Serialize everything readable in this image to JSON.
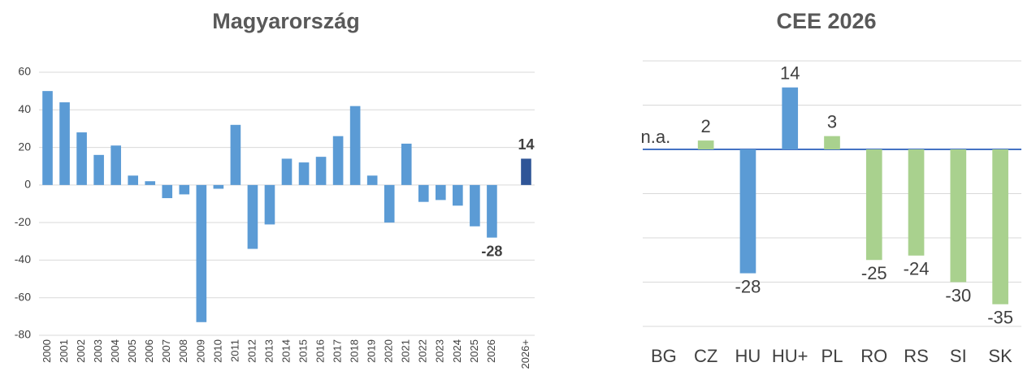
{
  "chart_data": [
    {
      "type": "bar",
      "title": "Magyarország",
      "categories": [
        "2000",
        "2001",
        "2002",
        "2003",
        "2004",
        "2005",
        "2006",
        "2007",
        "2008",
        "2009",
        "2010",
        "2011",
        "2012",
        "2013",
        "2014",
        "2015",
        "2016",
        "2017",
        "2018",
        "2019",
        "2020",
        "2021",
        "2022",
        "2023",
        "2024",
        "2025",
        "2026",
        null,
        "2026+"
      ],
      "values": [
        50,
        44,
        28,
        16,
        21,
        5,
        2,
        -7,
        -5,
        -73,
        -2,
        32,
        -34,
        -21,
        14,
        12,
        15,
        26,
        42,
        5,
        -20,
        22,
        -9,
        -8,
        -11,
        -22,
        -28,
        null,
        14
      ],
      "value_labels": [
        null,
        null,
        null,
        null,
        null,
        null,
        null,
        null,
        null,
        null,
        null,
        null,
        null,
        null,
        null,
        null,
        null,
        null,
        null,
        null,
        null,
        null,
        null,
        null,
        null,
        null,
        "-28",
        null,
        "14"
      ],
      "colors": [
        "#5b9bd5",
        "#5b9bd5",
        "#5b9bd5",
        "#5b9bd5",
        "#5b9bd5",
        "#5b9bd5",
        "#5b9bd5",
        "#5b9bd5",
        "#5b9bd5",
        "#5b9bd5",
        "#5b9bd5",
        "#5b9bd5",
        "#5b9bd5",
        "#5b9bd5",
        "#5b9bd5",
        "#5b9bd5",
        "#5b9bd5",
        "#5b9bd5",
        "#5b9bd5",
        "#5b9bd5",
        "#5b9bd5",
        "#5b9bd5",
        "#5b9bd5",
        "#5b9bd5",
        "#5b9bd5",
        "#5b9bd5",
        "#5b9bd5",
        null,
        "#2f5597"
      ],
      "ylim": [
        -80,
        60
      ],
      "yticks": [
        -80,
        -60,
        -40,
        -20,
        0,
        20,
        40,
        60
      ],
      "grid": true,
      "show_tick_labels": true
    },
    {
      "type": "bar",
      "title": "CEE 2026",
      "categories": [
        "BG",
        "CZ",
        "HU",
        "HU+",
        "PL",
        "RO",
        "RS",
        "SI",
        "SK"
      ],
      "values": [
        null,
        2,
        -28,
        14,
        3,
        -25,
        -24,
        -30,
        -35
      ],
      "value_labels": [
        "n.a.",
        "2",
        "-28",
        "14",
        "3",
        "-25",
        "-24",
        "-30",
        "-35"
      ],
      "colors": [
        null,
        "#a9d18e",
        "#5b9bd5",
        "#5b9bd5",
        "#a9d18e",
        "#a9d18e",
        "#a9d18e",
        "#a9d18e",
        "#a9d18e"
      ],
      "ylim": [
        -40,
        20
      ],
      "yticks": [
        -40,
        -30,
        -20,
        -10,
        0,
        10,
        20
      ],
      "grid": true,
      "show_tick_labels": false,
      "zero_line_color": "#4472c4"
    }
  ]
}
